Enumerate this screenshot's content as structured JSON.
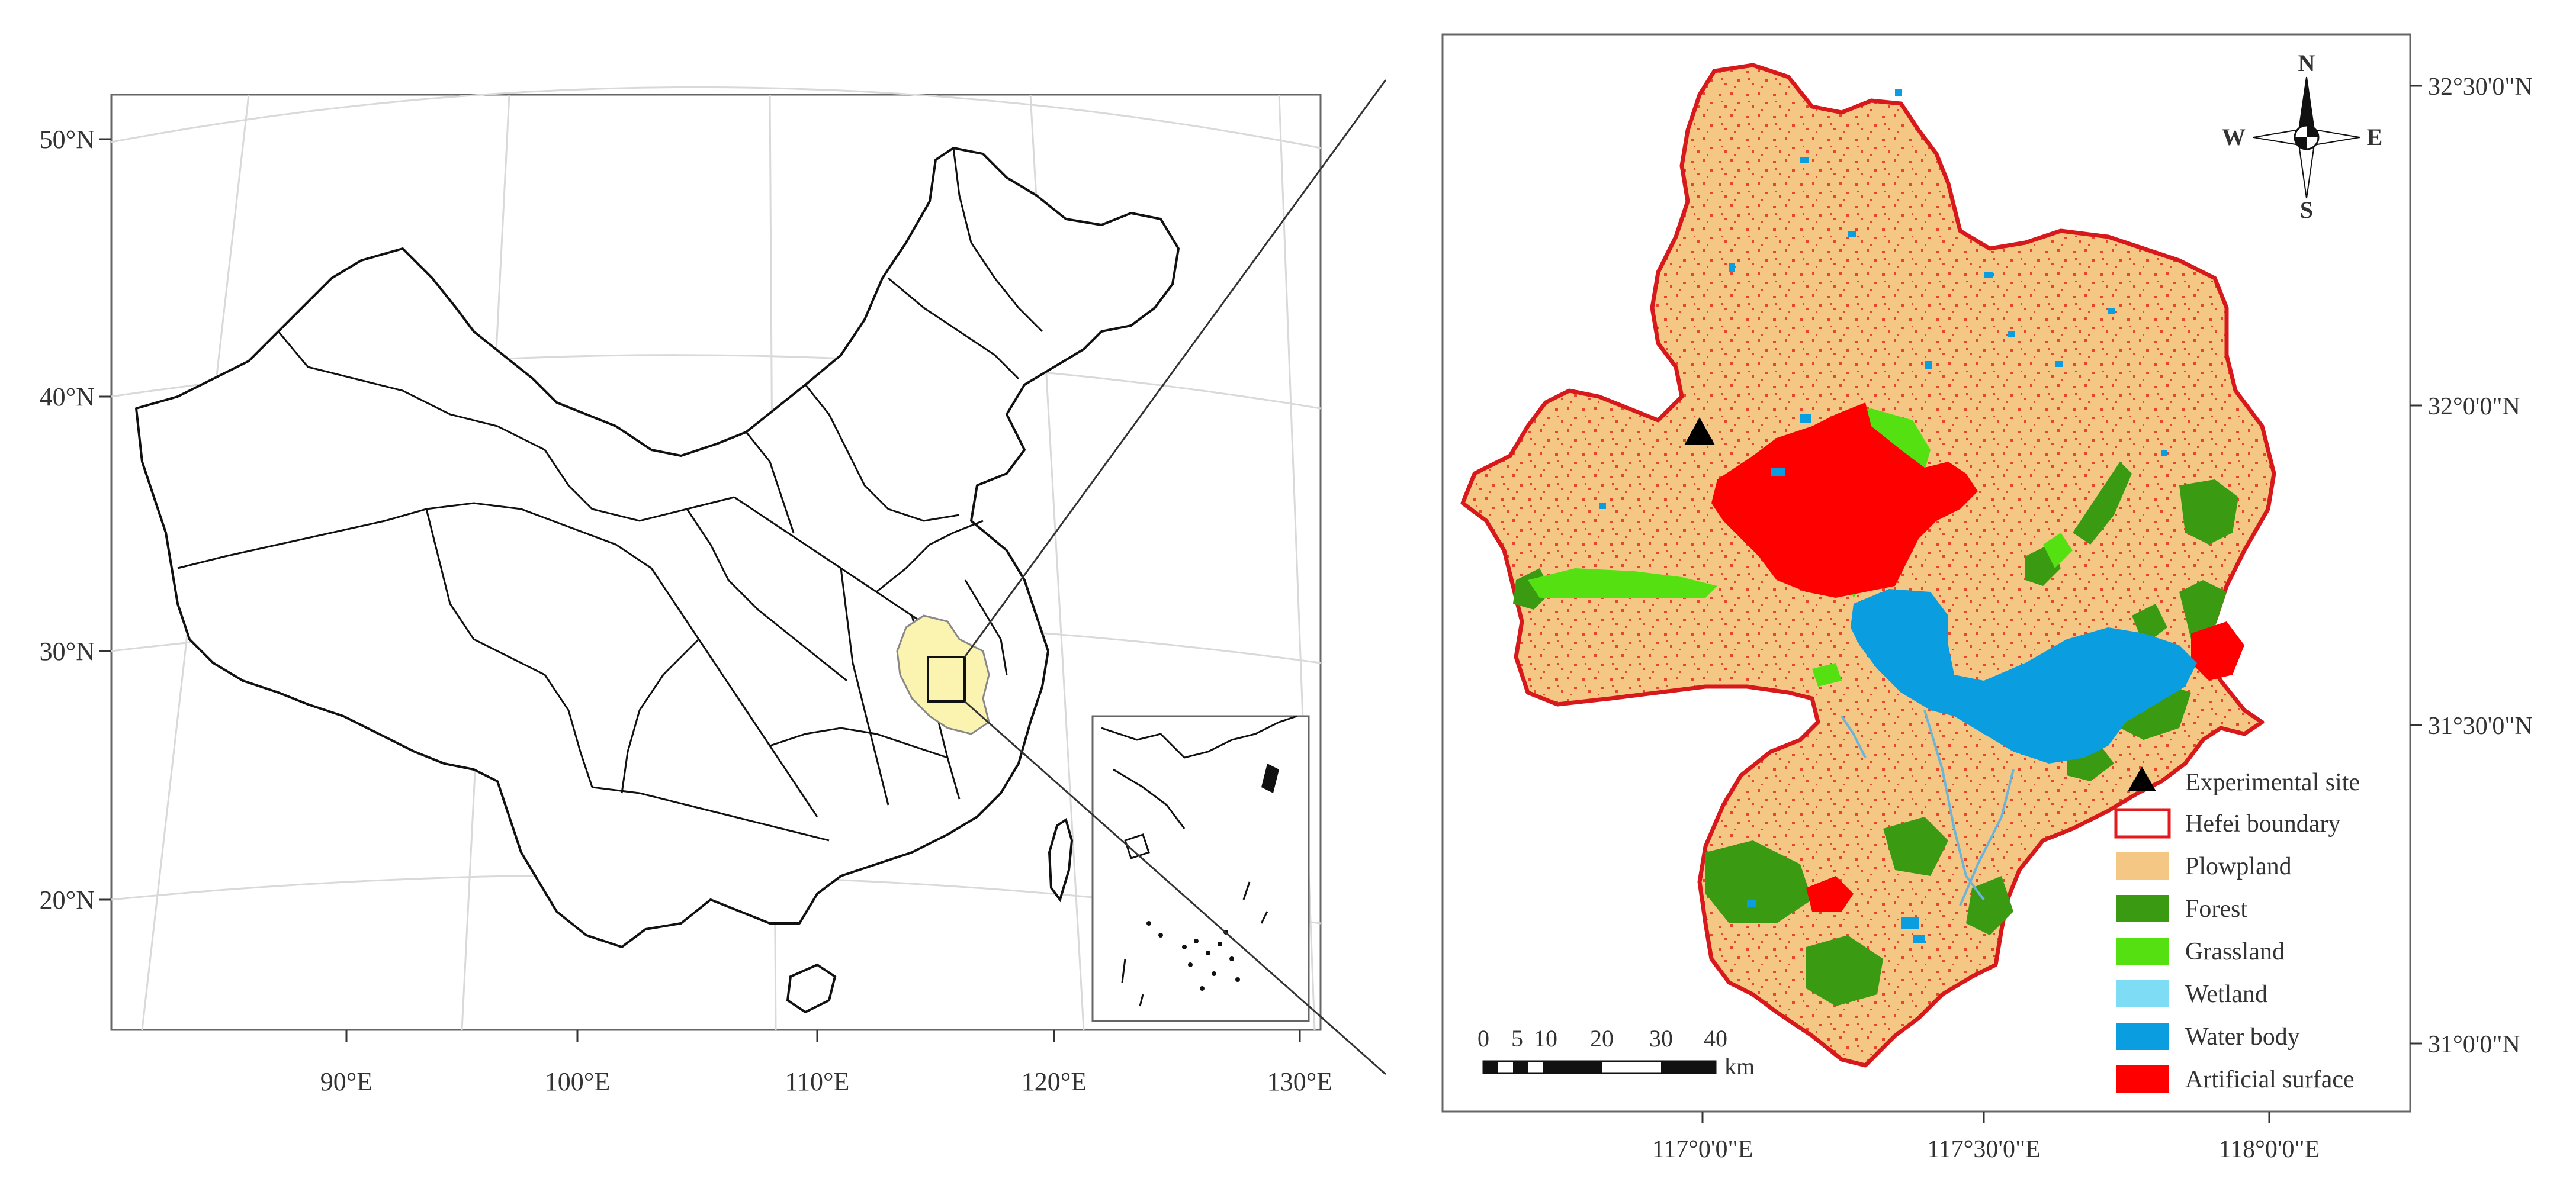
{
  "china_map": {
    "lat_labels": [
      "50°N",
      "40°N",
      "30°N",
      "20°N"
    ],
    "lon_labels": [
      "90°E",
      "100°E",
      "110°E",
      "120°E",
      "130°E"
    ]
  },
  "hefei_map": {
    "lat_labels": [
      "32°30'0\"N",
      "32°0'0\"N",
      "31°30'0\"N",
      "31°0'0\"N"
    ],
    "lon_labels": [
      "117°0'0\"E",
      "117°30'0\"E",
      "118°0'0\"E"
    ],
    "compass": {
      "n": "N",
      "s": "S",
      "e": "E",
      "w": "W"
    },
    "scale": {
      "ticks": [
        "0",
        "5",
        "10",
        "20",
        "30",
        "40"
      ],
      "unit": "km"
    },
    "legend": [
      {
        "label": "Experimental site",
        "color": "#000000",
        "symbol": "triangle"
      },
      {
        "label": "Hefei boundary",
        "color": "#e31a1c",
        "symbol": "outline"
      },
      {
        "label": "Plowpland",
        "color": "#f5c784",
        "symbol": "fill"
      },
      {
        "label": "Forest",
        "color": "#3a9a12",
        "symbol": "fill"
      },
      {
        "label": "Grassland",
        "color": "#55e012",
        "symbol": "fill"
      },
      {
        "label": "Wetland",
        "color": "#7fdcf5",
        "symbol": "fill"
      },
      {
        "label": "Water body",
        "color": "#0a9ee0",
        "symbol": "fill"
      },
      {
        "label": "Artificial surface",
        "color": "#ff0000",
        "symbol": "fill"
      }
    ]
  }
}
